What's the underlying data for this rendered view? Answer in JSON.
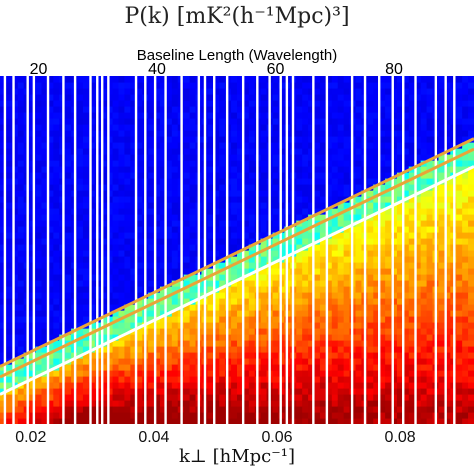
{
  "title": "P(k) [mK²(h⁻¹Mpc)³]",
  "chart_data": {
    "type": "heatmap",
    "title": "P(k) [mK²(h⁻¹Mpc)³]",
    "xlabel": "k⊥ [hMpc⁻¹]",
    "x2label": "Baseline Length (Wavelength)",
    "xlim": [
      0.015,
      0.092
    ],
    "x2lim": [
      13.5,
      93.5
    ],
    "xticks": [
      0.02,
      0.04,
      0.06,
      0.08
    ],
    "xtick_labels": [
      "0.02",
      "0.04",
      "0.06",
      "0.08"
    ],
    "x2ticks": [
      20,
      40,
      60,
      80
    ],
    "x2tick_labels": [
      "20",
      "40",
      "60",
      "80"
    ],
    "colormap": "jet",
    "masked_column_color": "#ffffff",
    "masked_columns_x": [
      0.0158,
      0.0172,
      0.0195,
      0.0205,
      0.0228,
      0.0253,
      0.0272,
      0.0297,
      0.0308,
      0.0316,
      0.0326,
      0.0371,
      0.0386,
      0.0402,
      0.0419,
      0.0445,
      0.0473,
      0.0483,
      0.0498,
      0.0519,
      0.0545,
      0.0568,
      0.0588,
      0.0606,
      0.0616,
      0.0626,
      0.0659,
      0.0681,
      0.0722,
      0.0743,
      0.0766,
      0.0788,
      0.0805,
      0.0825,
      0.0858,
      0.0874,
      0.0888
    ],
    "lines": [
      {
        "color": "#ffffff",
        "x": [
          0.015,
          0.092
        ],
        "y_frac": [
          0.085,
          0.74
        ]
      },
      {
        "color": "#e9a437",
        "x": [
          0.015,
          0.092
        ],
        "y_frac": [
          0.135,
          0.79
        ]
      },
      {
        "color": "#e9a437",
        "x": [
          0.015,
          0.092
        ],
        "y_frac": [
          0.165,
          0.82
        ]
      }
    ]
  }
}
